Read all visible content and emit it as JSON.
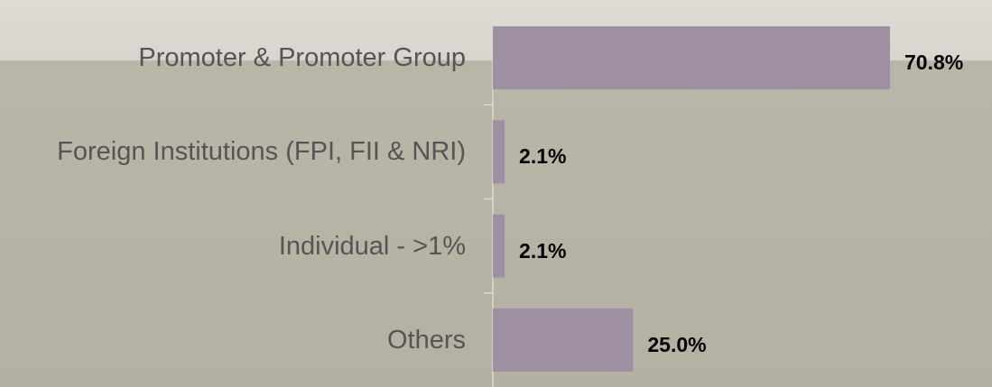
{
  "chart_data": {
    "type": "bar",
    "orientation": "horizontal",
    "categories": [
      "Promoter & Promoter Group",
      "Foreign Institutions (FPI, FII & NRI)",
      "Individual - >1%",
      "Others"
    ],
    "values": [
      70.8,
      2.1,
      2.1,
      25.0
    ],
    "value_labels": [
      "70.8%",
      "2.1%",
      "2.1%",
      "25.0%"
    ],
    "color": "#9e8fa2"
  }
}
